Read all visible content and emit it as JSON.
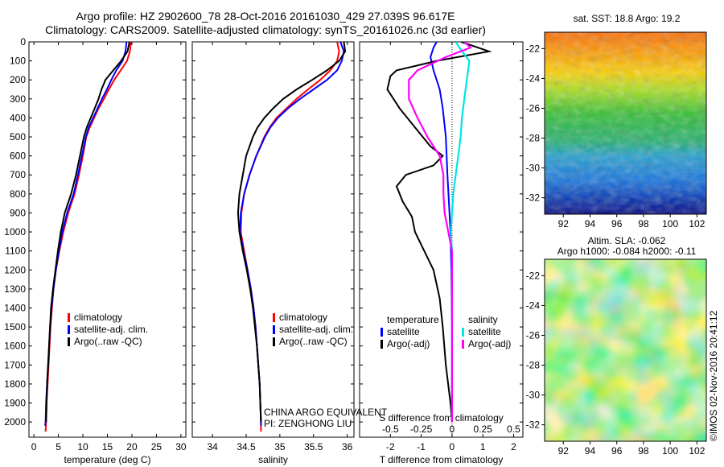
{
  "header": {
    "line1": "Argo profile: HZ 2902600_78 28-Oct-2016 20161030_429 27.039S 96.617E",
    "line2": "Climatology: CARS2009. Satellite-adjusted climatology: synTS_20161026.nc (3d earlier)"
  },
  "credit": "©IMOS 02-Nov-2016 20:41:12",
  "colors": {
    "climatology": "#ff0000",
    "satellite": "#0000ff",
    "argo": "#000000",
    "sal_satellite": "#00e5e5",
    "sal_argo": "#ff00ff"
  },
  "chart_data": [
    {
      "type": "line",
      "xlabel": "temperature (deg C)",
      "xlim": [
        -1,
        31
      ],
      "xticks": [
        0,
        5,
        10,
        15,
        20,
        25,
        30
      ],
      "ylim": [
        2080,
        0
      ],
      "yticks": [
        0,
        100,
        200,
        300,
        400,
        500,
        600,
        700,
        800,
        900,
        1000,
        1100,
        1200,
        1300,
        1400,
        1500,
        1600,
        1700,
        1800,
        1900,
        2000
      ],
      "legend": [
        "climatology",
        "satellite-adj. clim.",
        "Argo(..raw -QC)"
      ],
      "series": [
        {
          "name": "climatology",
          "color": "#ff0000",
          "points": [
            [
              19.8,
              0
            ],
            [
              19.6,
              50
            ],
            [
              19.0,
              100
            ],
            [
              17.7,
              150
            ],
            [
              16.4,
              200
            ],
            [
              15.3,
              250
            ],
            [
              14.3,
              300
            ],
            [
              13.2,
              350
            ],
            [
              12.3,
              400
            ],
            [
              11.4,
              450
            ],
            [
              10.7,
              500
            ],
            [
              10.0,
              600
            ],
            [
              9.2,
              700
            ],
            [
              8.3,
              800
            ],
            [
              7.0,
              900
            ],
            [
              6.0,
              1000
            ],
            [
              5.2,
              1100
            ],
            [
              4.5,
              1200
            ],
            [
              4.0,
              1300
            ],
            [
              3.7,
              1400
            ],
            [
              3.4,
              1500
            ],
            [
              3.2,
              1600
            ],
            [
              3.0,
              1700
            ],
            [
              2.8,
              1800
            ],
            [
              2.6,
              1900
            ],
            [
              2.5,
              2000
            ],
            [
              2.4,
              2050
            ]
          ]
        },
        {
          "name": "satellite-adj. clim.",
          "color": "#0000ff",
          "points": [
            [
              18.9,
              0
            ],
            [
              18.7,
              50
            ],
            [
              18.1,
              100
            ],
            [
              16.8,
              150
            ],
            [
              15.8,
              200
            ],
            [
              14.9,
              250
            ],
            [
              13.9,
              300
            ],
            [
              13.0,
              350
            ],
            [
              12.1,
              400
            ],
            [
              11.2,
              450
            ],
            [
              10.6,
              500
            ],
            [
              9.8,
              600
            ],
            [
              9.0,
              700
            ],
            [
              8.1,
              800
            ],
            [
              6.8,
              900
            ],
            [
              5.8,
              1000
            ],
            [
              5.1,
              1100
            ],
            [
              4.5,
              1200
            ],
            [
              4.0,
              1300
            ],
            [
              3.6,
              1400
            ],
            [
              3.3,
              1500
            ],
            [
              3.1,
              1600
            ],
            [
              2.9,
              1700
            ],
            [
              2.7,
              1800
            ],
            [
              2.5,
              1900
            ],
            [
              2.4,
              2000
            ],
            [
              2.3,
              2020
            ]
          ]
        },
        {
          "name": "Argo(..raw -QC)",
          "color": "#000000",
          "points": [
            [
              19.5,
              0
            ],
            [
              19.1,
              50
            ],
            [
              17.8,
              100
            ],
            [
              16.2,
              150
            ],
            [
              14.6,
              200
            ],
            [
              13.8,
              250
            ],
            [
              13.2,
              300
            ],
            [
              12.4,
              350
            ],
            [
              11.6,
              400
            ],
            [
              10.8,
              450
            ],
            [
              10.2,
              500
            ],
            [
              9.4,
              600
            ],
            [
              8.6,
              700
            ],
            [
              7.6,
              800
            ],
            [
              6.3,
              900
            ],
            [
              5.5,
              1000
            ],
            [
              4.9,
              1100
            ],
            [
              4.4,
              1200
            ],
            [
              3.9,
              1300
            ],
            [
              3.5,
              1400
            ],
            [
              3.3,
              1500
            ],
            [
              3.1,
              1600
            ],
            [
              2.9,
              1700
            ],
            [
              2.7,
              1800
            ],
            [
              2.6,
              1900
            ],
            [
              2.5,
              2000
            ]
          ]
        }
      ]
    },
    {
      "type": "line",
      "xlabel": "salinity",
      "xlim": [
        33.7,
        36.1
      ],
      "xticks": [
        34,
        34.5,
        35,
        35.5,
        36
      ],
      "ylim": [
        2080,
        0
      ],
      "legend": [
        "climatology",
        "satellite-adj. clim.",
        "Argo(..raw -QC)"
      ],
      "annotation": [
        "CHINA ARGO EQUIVALENT",
        "PI: ZENGHONG LIU"
      ],
      "series": [
        {
          "name": "climatology",
          "color": "#ff0000",
          "points": [
            [
              35.85,
              0
            ],
            [
              35.88,
              50
            ],
            [
              35.85,
              100
            ],
            [
              35.75,
              150
            ],
            [
              35.6,
              200
            ],
            [
              35.42,
              250
            ],
            [
              35.25,
              300
            ],
            [
              35.1,
              350
            ],
            [
              34.95,
              400
            ],
            [
              34.85,
              450
            ],
            [
              34.77,
              500
            ],
            [
              34.65,
              600
            ],
            [
              34.55,
              700
            ],
            [
              34.47,
              800
            ],
            [
              34.43,
              900
            ],
            [
              34.42,
              1000
            ],
            [
              34.47,
              1100
            ],
            [
              34.52,
              1200
            ],
            [
              34.57,
              1300
            ],
            [
              34.61,
              1400
            ],
            [
              34.64,
              1500
            ],
            [
              34.66,
              1600
            ],
            [
              34.68,
              1700
            ],
            [
              34.7,
              1800
            ],
            [
              34.71,
              1900
            ],
            [
              34.72,
              2000
            ],
            [
              34.72,
              2050
            ]
          ]
        },
        {
          "name": "satellite-adj. clim.",
          "color": "#0000ff",
          "points": [
            [
              35.9,
              0
            ],
            [
              35.95,
              50
            ],
            [
              35.92,
              100
            ],
            [
              35.85,
              150
            ],
            [
              35.7,
              200
            ],
            [
              35.5,
              250
            ],
            [
              35.3,
              300
            ],
            [
              35.12,
              350
            ],
            [
              34.97,
              400
            ],
            [
              34.86,
              450
            ],
            [
              34.78,
              500
            ],
            [
              34.65,
              600
            ],
            [
              34.55,
              700
            ],
            [
              34.47,
              800
            ],
            [
              34.42,
              900
            ],
            [
              34.41,
              1000
            ],
            [
              34.46,
              1100
            ],
            [
              34.52,
              1200
            ],
            [
              34.57,
              1300
            ],
            [
              34.61,
              1400
            ],
            [
              34.64,
              1500
            ],
            [
              34.66,
              1600
            ],
            [
              34.68,
              1700
            ],
            [
              34.7,
              1800
            ],
            [
              34.71,
              1900
            ],
            [
              34.72,
              2000
            ],
            [
              34.72,
              2020
            ]
          ]
        },
        {
          "name": "Argo(..raw -QC)",
          "color": "#000000",
          "points": [
            [
              35.95,
              0
            ],
            [
              35.97,
              50
            ],
            [
              35.88,
              100
            ],
            [
              35.7,
              150
            ],
            [
              35.48,
              200
            ],
            [
              35.25,
              250
            ],
            [
              35.05,
              300
            ],
            [
              34.9,
              350
            ],
            [
              34.77,
              400
            ],
            [
              34.67,
              450
            ],
            [
              34.6,
              500
            ],
            [
              34.5,
              600
            ],
            [
              34.45,
              700
            ],
            [
              34.4,
              800
            ],
            [
              34.38,
              900
            ],
            [
              34.4,
              1000
            ],
            [
              34.45,
              1100
            ],
            [
              34.51,
              1200
            ],
            [
              34.56,
              1300
            ],
            [
              34.6,
              1400
            ],
            [
              34.63,
              1500
            ],
            [
              34.66,
              1600
            ],
            [
              34.68,
              1700
            ],
            [
              34.7,
              1800
            ],
            [
              34.71,
              1900
            ],
            [
              34.72,
              2000
            ]
          ]
        }
      ]
    },
    {
      "type": "line",
      "xlabel": "T difference from climatology",
      "xlabel_top": "S difference from climatology",
      "xlim": [
        -3,
        2.3
      ],
      "xticks": [
        -2,
        -1,
        0,
        1,
        2
      ],
      "x2ticks": [
        -0.5,
        -0.25,
        0,
        0.25,
        0.5
      ],
      "ylim": [
        2080,
        0
      ],
      "legend": {
        "temperature": [
          "satellite",
          "Argo(-adj)"
        ],
        "salinity": [
          "satellite",
          "Argo(-adj)"
        ]
      },
      "series": [
        {
          "name": "temperature satellite",
          "color": "#0000ff",
          "points": [
            [
              -0.5,
              0
            ],
            [
              -0.6,
              30
            ],
            [
              -0.7,
              80
            ],
            [
              -0.6,
              150
            ],
            [
              -0.4,
              250
            ],
            [
              -0.3,
              350
            ],
            [
              -0.2,
              500
            ],
            [
              -0.15,
              700
            ],
            [
              -0.1,
              850
            ],
            [
              -0.05,
              1000
            ],
            [
              -0.02,
              1200
            ],
            [
              0,
              1500
            ],
            [
              0,
              2000
            ]
          ]
        },
        {
          "name": "temperature Argo(-adj)",
          "color": "#000000",
          "points": [
            [
              0.3,
              0
            ],
            [
              1.2,
              50
            ],
            [
              -0.5,
              100
            ],
            [
              -1.8,
              150
            ],
            [
              -2.0,
              180
            ],
            [
              -2.1,
              250
            ],
            [
              -1.7,
              350
            ],
            [
              -1.2,
              450
            ],
            [
              -0.7,
              550
            ],
            [
              -0.3,
              600
            ],
            [
              -0.6,
              650
            ],
            [
              -1.5,
              700
            ],
            [
              -1.8,
              760
            ],
            [
              -1.6,
              840
            ],
            [
              -1.3,
              920
            ],
            [
              -1.2,
              1000
            ],
            [
              -0.9,
              1100
            ],
            [
              -0.6,
              1200
            ],
            [
              -0.4,
              1350
            ],
            [
              -0.3,
              1500
            ],
            [
              -0.2,
              1700
            ],
            [
              -0.05,
              1900
            ],
            [
              0,
              2000
            ]
          ]
        },
        {
          "name": "salinity satellite",
          "color": "#00e5e5",
          "points": [
            [
              0.03,
              0
            ],
            [
              0.07,
              40
            ],
            [
              0.14,
              100
            ],
            [
              0.12,
              200
            ],
            [
              0.1,
              300
            ],
            [
              0.08,
              400
            ],
            [
              0.07,
              500
            ],
            [
              0.05,
              600
            ],
            [
              0.03,
              700
            ],
            [
              0.01,
              800
            ],
            [
              0.0,
              900
            ],
            [
              -0.01,
              1000
            ],
            [
              0,
              1100
            ],
            [
              0,
              1500
            ],
            [
              0,
              2000
            ]
          ]
        },
        {
          "name": "salinity Argo(-adj)",
          "color": "#ff00ff",
          "points": [
            [
              0.1,
              0
            ],
            [
              0.15,
              30
            ],
            [
              -0.05,
              80
            ],
            [
              -0.28,
              150
            ],
            [
              -0.35,
              200
            ],
            [
              -0.35,
              300
            ],
            [
              -0.28,
              400
            ],
            [
              -0.2,
              500
            ],
            [
              -0.1,
              600
            ],
            [
              -0.07,
              700
            ],
            [
              -0.07,
              800
            ],
            [
              -0.06,
              900
            ],
            [
              -0.03,
              1000
            ],
            [
              0,
              1100
            ],
            [
              0,
              1500
            ],
            [
              0,
              2000
            ]
          ]
        }
      ]
    },
    {
      "type": "heatmap",
      "title": "sat. SST: 18.8 Argo: 19.2",
      "xticks": [
        92,
        94,
        96,
        98,
        100,
        102
      ],
      "yticks": [
        -22,
        -24,
        -26,
        -28,
        -30,
        -32
      ],
      "xlim": [
        90.6,
        102.7
      ],
      "ylim": [
        -33.1,
        -20.9
      ]
    },
    {
      "type": "heatmap",
      "title_line1": "Altim. SLA: -0.062",
      "title_line2": "Argo h1000: -0.084 h2000: -0.11",
      "xticks": [
        92,
        94,
        96,
        98,
        100,
        102
      ],
      "yticks": [
        -22,
        -24,
        -26,
        -28,
        -30,
        -32
      ],
      "xlim": [
        90.6,
        102.7
      ],
      "ylim": [
        -33.1,
        -20.9
      ]
    }
  ]
}
